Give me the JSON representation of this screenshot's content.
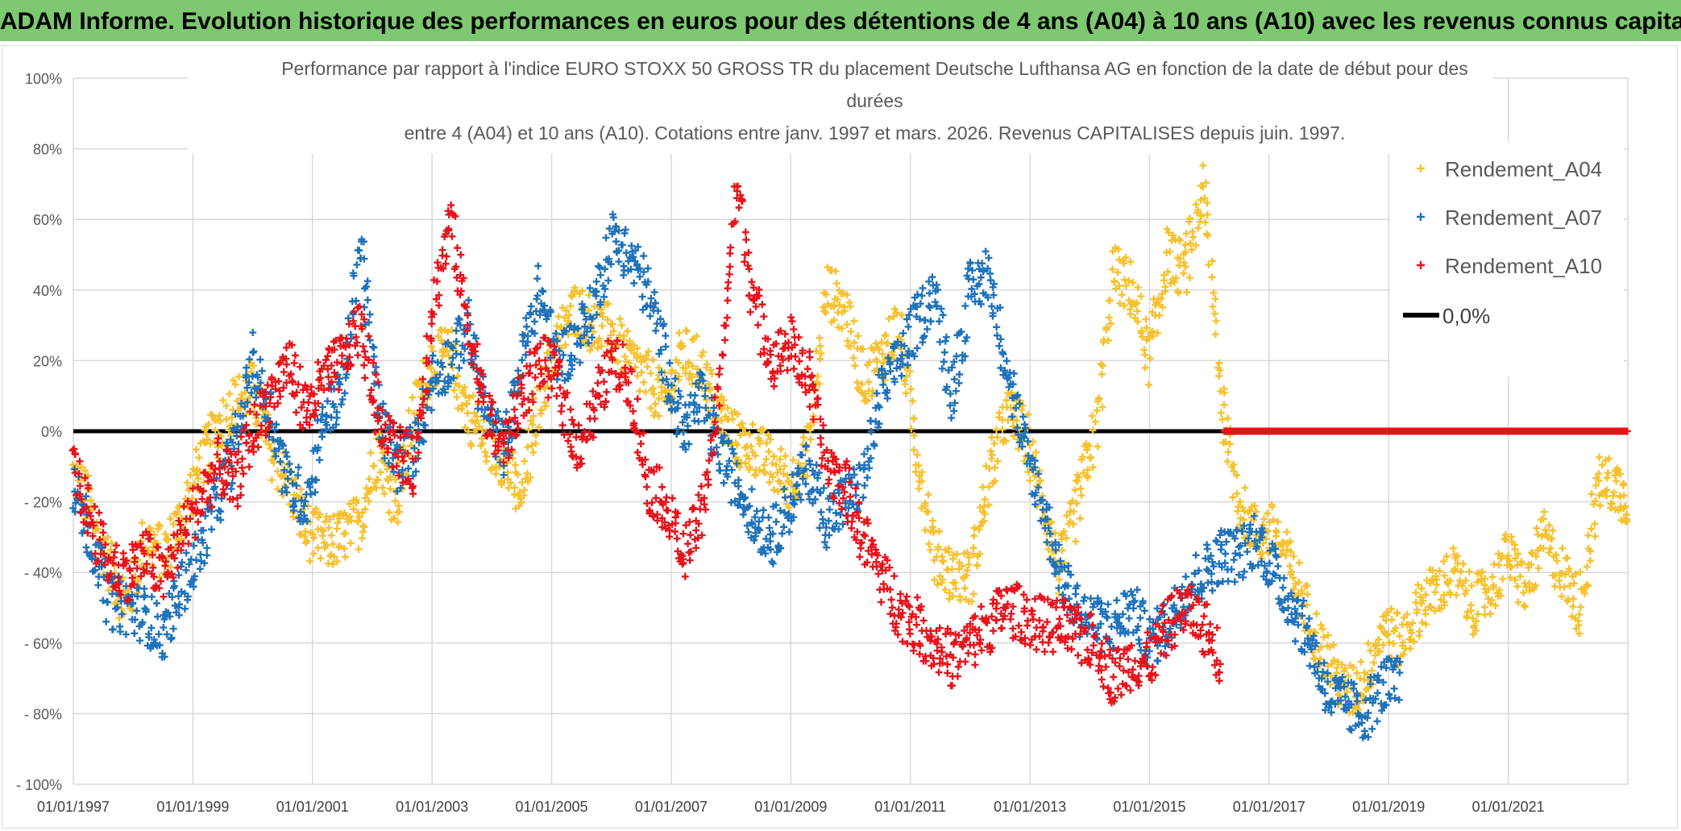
{
  "banner": {
    "title": "ADAM Informe. Evolution historique des performances en euros pour des détentions de 4 ans (A04) à 10 ans (A10) avec les revenus connus capitalisés"
  },
  "chart_data": {
    "type": "scatter",
    "title_lines": [
      "Performance par rapport à l'indice EURO STOXX 50 GROSS TR  du placement Deutsche Lufthansa AG en fonction de la date de début pour des",
      "durées",
      "entre 4 (A04) et 10 ans (A10). Cotations entre janv. 1997 et mars. 2026. Revenus CAPITALISES depuis juin. 1997."
    ],
    "xlabel": "",
    "ylabel": "",
    "x_range": [
      1997.0,
      2023.0
    ],
    "ylim": [
      -100,
      100
    ],
    "y_ticks": [
      100,
      80,
      60,
      40,
      20,
      0,
      -20,
      -40,
      -60,
      -80,
      -100
    ],
    "y_tick_labels": [
      "100%",
      "80%",
      "60%",
      "40%",
      "20%",
      "0%",
      "- 20%",
      "- 40%",
      "- 60%",
      "- 80%",
      "- 100%"
    ],
    "x_ticks": [
      1997,
      1999,
      2001,
      2003,
      2005,
      2007,
      2009,
      2011,
      2013,
      2015,
      2017,
      2019,
      2021
    ],
    "x_tick_labels": [
      "01/01/1997",
      "01/01/1999",
      "01/01/2001",
      "01/01/2003",
      "01/01/2005",
      "01/01/2007",
      "01/01/2009",
      "01/01/2011",
      "01/01/2013",
      "01/01/2015",
      "01/01/2017",
      "01/01/2019",
      "01/01/2021"
    ],
    "reference_line": {
      "name": "0,0%",
      "y": 0,
      "color": "#000000"
    },
    "zero_dots_series": {
      "x_range": [
        2016.25,
        2023.0
      ],
      "color": "#e8121a"
    },
    "legend_position": "top-right",
    "series": [
      {
        "name": "Rendement_A04",
        "color": "#f6c12e",
        "x": [
          1997.0,
          1997.3,
          1997.6,
          1997.9,
          1998.2,
          1998.5,
          1998.8,
          1999.1,
          1999.4,
          1999.7,
          2000.0,
          2000.3,
          2000.6,
          2000.9,
          2001.2,
          2001.5,
          2001.8,
          2002.1,
          2002.4,
          2002.7,
          2003.0,
          2003.3,
          2003.6,
          2003.9,
          2004.2,
          2004.5,
          2004.8,
          2005.1,
          2005.4,
          2005.7,
          2006.0,
          2006.3,
          2006.6,
          2006.9,
          2007.2,
          2007.5,
          2007.8,
          2008.1,
          2008.4,
          2008.7,
          2009.0,
          2009.3,
          2009.6,
          2009.9,
          2010.2,
          2010.5,
          2010.8,
          2011.1,
          2011.4,
          2011.7,
          2012.0,
          2012.3,
          2012.6,
          2012.9,
          2013.2,
          2013.5,
          2013.8,
          2014.1,
          2014.4,
          2014.7,
          2015.0,
          2015.3,
          2015.6,
          2015.9,
          2016.2,
          2016.5,
          2016.8,
          2017.1,
          2017.4,
          2017.7,
          2018.0,
          2018.3,
          2018.6,
          2018.9,
          2019.2,
          2019.5,
          2019.8,
          2020.1,
          2020.4,
          2020.7,
          2021.0,
          2021.3,
          2021.6,
          2021.9,
          2022.2,
          2022.5,
          2022.8,
          2023.0
        ],
        "y": [
          -12,
          -22,
          -38,
          -50,
          -30,
          -35,
          -25,
          -10,
          0,
          8,
          12,
          -5,
          -15,
          -28,
          -32,
          -30,
          -25,
          -5,
          -20,
          5,
          20,
          22,
          5,
          -2,
          -8,
          -20,
          10,
          25,
          35,
          30,
          28,
          20,
          15,
          8,
          22,
          18,
          5,
          -3,
          -5,
          -10,
          -15,
          -5,
          40,
          35,
          15,
          20,
          30,
          -5,
          -35,
          -40,
          -42,
          -15,
          5,
          0,
          -20,
          -40,
          -20,
          0,
          45,
          40,
          20,
          50,
          45,
          70,
          10,
          -20,
          -30,
          -28,
          -40,
          -55,
          -65,
          -75,
          -70,
          -55,
          -60,
          -50,
          -45,
          -40,
          -50,
          -45,
          -35,
          -45,
          -30,
          -40,
          -50,
          -15,
          -15,
          -20
        ]
      },
      {
        "name": "Rendement_A07",
        "color": "#1e72ba",
        "x": [
          1997.0,
          1997.3,
          1997.6,
          1997.9,
          1998.2,
          1998.5,
          1998.8,
          1999.1,
          1999.4,
          1999.7,
          2000.0,
          2000.3,
          2000.6,
          2000.9,
          2001.2,
          2001.5,
          2001.8,
          2002.1,
          2002.4,
          2002.7,
          2003.0,
          2003.3,
          2003.6,
          2003.9,
          2004.2,
          2004.5,
          2004.8,
          2005.1,
          2005.4,
          2005.7,
          2006.0,
          2006.3,
          2006.6,
          2006.9,
          2007.2,
          2007.5,
          2007.8,
          2008.1,
          2008.4,
          2008.7,
          2009.0,
          2009.3,
          2009.6,
          2009.9,
          2010.2,
          2010.5,
          2010.8,
          2011.1,
          2011.4,
          2011.7,
          2012.0,
          2012.3,
          2012.6,
          2012.9,
          2013.2,
          2013.5,
          2013.8,
          2014.1,
          2014.4,
          2014.7,
          2015.0,
          2015.3,
          2015.6,
          2015.9,
          2016.2,
          2016.5,
          2016.8,
          2017.1,
          2017.4,
          2017.7,
          2018.0,
          2018.3,
          2018.6,
          2018.9,
          2019.2
        ],
        "y": [
          -15,
          -30,
          -48,
          -50,
          -52,
          -58,
          -45,
          -35,
          -20,
          -5,
          20,
          5,
          -15,
          -20,
          5,
          10,
          55,
          5,
          -10,
          -5,
          15,
          20,
          30,
          5,
          -5,
          20,
          40,
          20,
          25,
          35,
          55,
          50,
          40,
          20,
          0,
          10,
          -5,
          -15,
          -25,
          -30,
          -20,
          -10,
          -25,
          -20,
          -15,
          10,
          20,
          30,
          40,
          10,
          40,
          45,
          20,
          -5,
          -20,
          -40,
          -50,
          -55,
          -55,
          -50,
          -60,
          -55,
          -45,
          -40,
          -35,
          -35,
          -30,
          -40,
          -50,
          -60,
          -75,
          -78,
          -80,
          -72,
          -72
        ]
      },
      {
        "name": "Rendement_A10",
        "color": "#e8121a",
        "x": [
          1997.0,
          1997.3,
          1997.6,
          1997.9,
          1998.2,
          1998.5,
          1998.8,
          1999.1,
          1999.4,
          1999.7,
          2000.0,
          2000.3,
          2000.6,
          2000.9,
          2001.2,
          2001.5,
          2001.8,
          2002.1,
          2002.4,
          2002.7,
          2003.0,
          2003.3,
          2003.6,
          2003.9,
          2004.2,
          2004.5,
          2004.8,
          2005.1,
          2005.4,
          2005.7,
          2006.0,
          2006.3,
          2006.6,
          2006.9,
          2007.2,
          2007.5,
          2007.8,
          2008.1,
          2008.4,
          2008.7,
          2009.0,
          2009.3,
          2009.6,
          2009.9,
          2010.2,
          2010.5,
          2010.8,
          2011.1,
          2011.4,
          2011.7,
          2012.0,
          2012.3,
          2012.6,
          2012.9,
          2013.2,
          2013.5,
          2013.8,
          2014.1,
          2014.4,
          2014.7,
          2015.0,
          2015.3,
          2015.6,
          2015.9,
          2016.2
        ],
        "y": [
          -10,
          -25,
          -38,
          -40,
          -35,
          -42,
          -30,
          -20,
          -10,
          -15,
          0,
          10,
          20,
          5,
          15,
          20,
          30,
          5,
          -5,
          -10,
          35,
          60,
          30,
          5,
          -5,
          10,
          20,
          15,
          -5,
          5,
          20,
          15,
          -15,
          -20,
          -35,
          -25,
          10,
          70,
          35,
          20,
          25,
          15,
          -10,
          -15,
          -30,
          -40,
          -50,
          -55,
          -60,
          -65,
          -60,
          -55,
          -50,
          -52,
          -55,
          -55,
          -58,
          -60,
          -70,
          -65,
          -65,
          -55,
          -50,
          -55,
          -65
        ]
      }
    ]
  }
}
